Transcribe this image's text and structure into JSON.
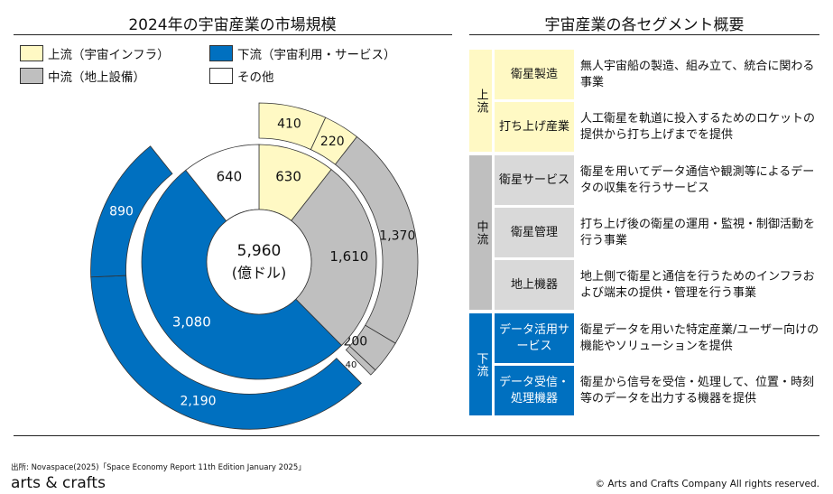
{
  "left_title": "2024年の宇宙産業の市場規模",
  "right_title": "宇宙産業の各セグメント概要",
  "legend": [
    {
      "label": "上流（宇宙インフラ）",
      "color": "#FFF9C4"
    },
    {
      "label": "下流（宇宙利用・サービス）",
      "color": "#0070C0"
    },
    {
      "label": "中流（地上設備）",
      "color": "#BFBFBF"
    },
    {
      "label": "その他",
      "color": "#FFFFFF"
    }
  ],
  "chart_data": {
    "type": "sunburst",
    "title": "2024年の宇宙産業の市場規模",
    "total_label": "5,960",
    "unit_label": "(億ドル)",
    "total": 5960,
    "inner": [
      {
        "name": "上流",
        "value": 630,
        "label": "630",
        "color": "#FFF9C4"
      },
      {
        "name": "中流",
        "value": 1610,
        "label": "1,610",
        "color": "#BFBFBF"
      },
      {
        "name": "下流",
        "value": 3080,
        "label": "3,080",
        "color": "#0070C0"
      },
      {
        "name": "その他",
        "value": 640,
        "label": "640",
        "color": "#FFFFFF"
      }
    ],
    "outer": [
      {
        "parent": "上流",
        "value": 410,
        "label": "410",
        "color": "#FFF9C4"
      },
      {
        "parent": "上流",
        "value": 220,
        "label": "220",
        "color": "#FFF9C4"
      },
      {
        "parent": "中流",
        "value": 1370,
        "label": "1,370",
        "color": "#BFBFBF"
      },
      {
        "parent": "中流",
        "value": 200,
        "label": "200",
        "color": "#BFBFBF"
      },
      {
        "parent": "中流",
        "value": 40,
        "label": "40",
        "color": "#BFBFBF"
      },
      {
        "parent": "下流",
        "value": 2190,
        "label": "2,190",
        "color": "#0070C0"
      },
      {
        "parent": "下流",
        "value": 890,
        "label": "890",
        "color": "#0070C0"
      }
    ]
  },
  "segments": [
    {
      "category": "上流",
      "cat_color": "#FFF9C4",
      "sub_color": "#FFF9C4",
      "text_color": "#111",
      "rows": [
        {
          "name": "衛星製造",
          "desc": "無人宇宙船の製造、組み立て、統合に関わる事業"
        },
        {
          "name": "打ち上げ産業",
          "desc": "人工衛星を軌道に投入するためのロケットの提供から打ち上げまでを提供"
        }
      ]
    },
    {
      "category": "中流",
      "cat_color": "#BFBFBF",
      "sub_color": "#D9D9D9",
      "text_color": "#111",
      "rows": [
        {
          "name": "衛星サービス",
          "desc": "衛星を用いてデータ通信や観測等によるデータの収集を行うサービス"
        },
        {
          "name": "衛星管理",
          "desc": "打ち上げ後の衛星の運用・監視・制御活動を行う事業"
        },
        {
          "name": "地上機器",
          "desc": "地上側で衛星と通信を行うためのインフラおよび端末の提供・管理を行う事業"
        }
      ]
    },
    {
      "category": "下流",
      "cat_color": "#0070C0",
      "sub_color": "#0070C0",
      "text_color": "#fff",
      "rows": [
        {
          "name": "データ活用サービス",
          "desc": "衛星データを用いた特定産業/ユーザー向けの機能やソリューションを提供"
        },
        {
          "name": "データ受信・処理機器",
          "desc": "衛星から信号を受信・処理して、位置・時刻等のデータを出力する機器を提供"
        }
      ]
    }
  ],
  "source": "出所: Novaspace(2025)「Space Economy Report 11th Edition January 2025」",
  "logo": "arts & crafts",
  "copyright": "© Arts and Crafts Company All rights reserved."
}
